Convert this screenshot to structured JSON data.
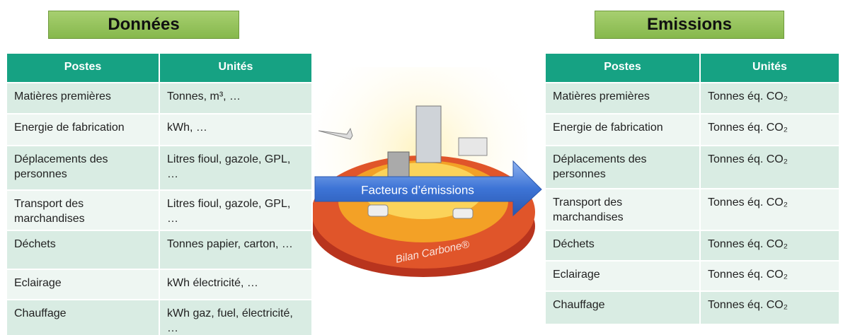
{
  "left": {
    "title": "Données",
    "headers": [
      "Postes",
      "Unités"
    ],
    "rows": [
      [
        "Matières premières",
        "Tonnes, m³, …"
      ],
      [
        "Energie de fabrication",
        "kWh, …"
      ],
      [
        "Déplacements des personnes",
        "Litres fioul, gazole, GPL, …"
      ],
      [
        "Transport des marchandises",
        "Litres fioul, gazole, GPL, …"
      ],
      [
        "Déchets",
        "Tonnes papier, carton, …"
      ],
      [
        "Eclairage",
        "kWh électricité, …"
      ],
      [
        "Chauffage",
        "kWh gaz, fuel, électricité, …"
      ]
    ]
  },
  "right": {
    "title": "Emissions",
    "headers": [
      "Postes",
      "Unités"
    ],
    "rows": [
      [
        "Matières premières",
        "Tonnes éq. CO₂"
      ],
      [
        "Energie de fabrication",
        "Tonnes éq. CO₂"
      ],
      [
        "Déplacements des personnes",
        "Tonnes éq. CO₂"
      ],
      [
        "Transport des marchandises",
        "Tonnes éq. CO₂"
      ],
      [
        "Déchets",
        "Tonnes éq. CO₂"
      ],
      [
        "Eclairage",
        "Tonnes éq. CO₂"
      ],
      [
        "Chauffage",
        "Tonnes éq. CO₂"
      ]
    ]
  },
  "center": {
    "arrow_label": "Facteurs d’émissions",
    "disk_label": "Bilan Carbone®"
  }
}
